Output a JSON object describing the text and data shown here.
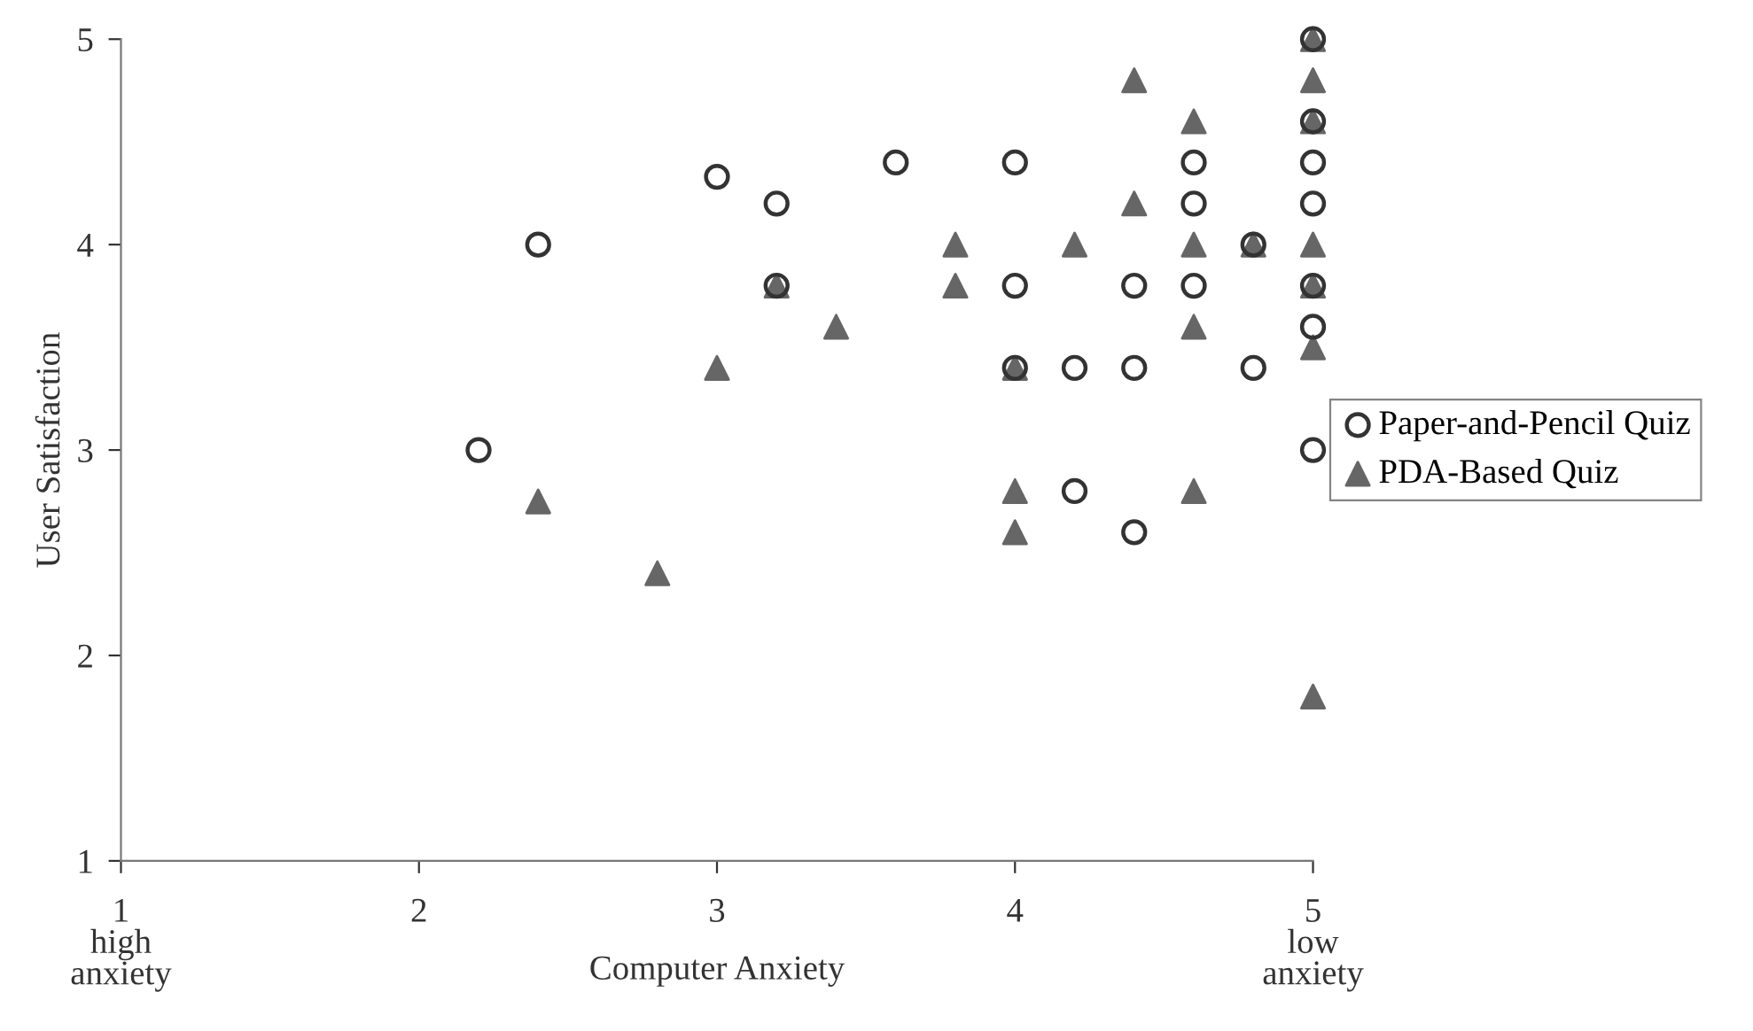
{
  "chart_data": {
    "type": "scatter",
    "xlabel": "Computer Anxiety",
    "ylabel": "User Satisfaction",
    "xlim": [
      1,
      5
    ],
    "ylim": [
      1,
      5
    ],
    "xticks": [
      {
        "value": 1,
        "label": "1\nhigh\nanxiety"
      },
      2,
      3,
      4,
      {
        "value": 5,
        "label": "5\nlow\nanxiety"
      }
    ],
    "yticks": [
      1,
      2,
      3,
      4,
      5
    ],
    "grid": false,
    "legend": "right",
    "series": [
      {
        "name": "Paper-and-Pencil Quiz",
        "color": "#333333",
        "marker": "circle",
        "x": [
          2.2,
          2.4,
          3,
          3.2,
          3.2,
          3.6,
          4,
          4,
          4,
          4.2,
          4.2,
          4.4,
          4.4,
          4.4,
          4.6,
          4.6,
          4.6,
          4.8,
          4.8,
          5,
          5,
          5,
          5,
          5,
          5,
          5
        ],
        "values": [
          3,
          4,
          4.33,
          4.2,
          3.8,
          4.4,
          4.4,
          3.8,
          3.4,
          3.4,
          2.8,
          3.8,
          3.4,
          2.6,
          4.4,
          4.2,
          3.8,
          4,
          3.4,
          5,
          4.6,
          4.4,
          4.2,
          3.8,
          3.6,
          3
        ]
      },
      {
        "name": "PDA-Based Quiz",
        "color": "#666666",
        "marker": "triangle",
        "x": [
          2.4,
          2.8,
          3,
          3.2,
          3.4,
          3.8,
          3.8,
          4,
          4,
          4,
          4.2,
          4.4,
          4.4,
          4.6,
          4.6,
          4.6,
          4.6,
          4.8,
          5,
          5,
          5,
          5,
          5,
          5,
          5
        ],
        "values": [
          2.75,
          2.4,
          3.4,
          3.8,
          3.6,
          4,
          3.8,
          3.4,
          2.8,
          2.6,
          4,
          4.8,
          4.2,
          4.6,
          4,
          3.6,
          2.8,
          4,
          5,
          4.8,
          4.6,
          4,
          3.8,
          3.5,
          1.8
        ]
      }
    ]
  }
}
